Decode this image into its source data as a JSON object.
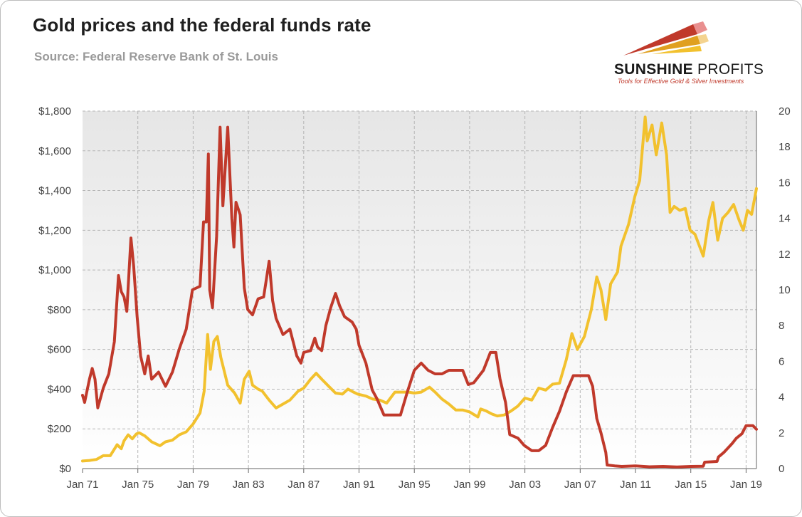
{
  "header": {
    "title": "Gold prices and the federal funds rate",
    "subtitle": "Source: Federal Reserve Bank of St. Louis"
  },
  "brand": {
    "name_bold": "SUNSHINE",
    "name_rest": " PROFITS",
    "tagline": "Tools for Effective Gold & Silver Investments"
  },
  "colors": {
    "gold": "#f2c12e",
    "fed_funds": "#c0392b",
    "grid": "#b5b5b5"
  },
  "chart_data": {
    "type": "line",
    "title": "Gold prices and the federal funds rate",
    "x_range": [
      1971.0,
      2019.75
    ],
    "x_ticks": [
      "Jan 71",
      "Jan 75",
      "Jan 79",
      "Jan 83",
      "Jan 87",
      "Jan 91",
      "Jan 95",
      "Jan 99",
      "Jan 03",
      "Jan 07",
      "Jan 11",
      "Jan 15",
      "Jan 19"
    ],
    "y_left": {
      "range": [
        0,
        1800
      ],
      "ticks": [
        "$0",
        "$200",
        "$400",
        "$600",
        "$800",
        "$1,000",
        "$1,200",
        "$1,400",
        "$1,600",
        "$1,800"
      ]
    },
    "y_right": {
      "range": [
        0,
        20
      ],
      "ticks": [
        "0",
        "2",
        "4",
        "6",
        "8",
        "10",
        "12",
        "14",
        "16",
        "18",
        "20"
      ]
    },
    "grid": true,
    "series": [
      {
        "key": "gold",
        "axis": "left",
        "points": [
          [
            1971.0,
            38
          ],
          [
            1971.5,
            41
          ],
          [
            1972.0,
            46
          ],
          [
            1972.5,
            65
          ],
          [
            1973.0,
            65
          ],
          [
            1973.5,
            120
          ],
          [
            1973.8,
            100
          ],
          [
            1974.0,
            140
          ],
          [
            1974.3,
            170
          ],
          [
            1974.6,
            150
          ],
          [
            1974.9,
            175
          ],
          [
            1975.1,
            180
          ],
          [
            1975.5,
            165
          ],
          [
            1976.0,
            135
          ],
          [
            1976.6,
            115
          ],
          [
            1977.0,
            135
          ],
          [
            1977.5,
            143
          ],
          [
            1978.0,
            170
          ],
          [
            1978.5,
            185
          ],
          [
            1979.0,
            225
          ],
          [
            1979.5,
            280
          ],
          [
            1979.8,
            390
          ],
          [
            1980.05,
            675
          ],
          [
            1980.25,
            500
          ],
          [
            1980.5,
            640
          ],
          [
            1980.75,
            665
          ],
          [
            1981.0,
            560
          ],
          [
            1981.5,
            420
          ],
          [
            1982.0,
            380
          ],
          [
            1982.4,
            330
          ],
          [
            1982.7,
            450
          ],
          [
            1983.05,
            490
          ],
          [
            1983.3,
            420
          ],
          [
            1983.7,
            400
          ],
          [
            1984.0,
            390
          ],
          [
            1984.5,
            345
          ],
          [
            1985.0,
            305
          ],
          [
            1985.5,
            325
          ],
          [
            1986.0,
            345
          ],
          [
            1986.6,
            390
          ],
          [
            1987.0,
            405
          ],
          [
            1987.5,
            450
          ],
          [
            1987.9,
            480
          ],
          [
            1988.3,
            450
          ],
          [
            1988.8,
            415
          ],
          [
            1989.3,
            380
          ],
          [
            1989.8,
            375
          ],
          [
            1990.2,
            400
          ],
          [
            1990.6,
            385
          ],
          [
            1990.9,
            375
          ],
          [
            1991.5,
            365
          ],
          [
            1992.0,
            350
          ],
          [
            1992.5,
            345
          ],
          [
            1993.0,
            330
          ],
          [
            1993.6,
            385
          ],
          [
            1994.0,
            385
          ],
          [
            1994.6,
            385
          ],
          [
            1995.0,
            380
          ],
          [
            1995.5,
            385
          ],
          [
            1996.1,
            410
          ],
          [
            1996.5,
            385
          ],
          [
            1997.0,
            350
          ],
          [
            1997.5,
            325
          ],
          [
            1998.0,
            295
          ],
          [
            1998.5,
            295
          ],
          [
            1999.0,
            285
          ],
          [
            1999.6,
            260
          ],
          [
            1999.8,
            300
          ],
          [
            2000.2,
            290
          ],
          [
            2000.6,
            275
          ],
          [
            2001.0,
            265
          ],
          [
            2001.5,
            270
          ],
          [
            2002.0,
            290
          ],
          [
            2002.5,
            315
          ],
          [
            2003.0,
            355
          ],
          [
            2003.5,
            345
          ],
          [
            2004.0,
            405
          ],
          [
            2004.5,
            395
          ],
          [
            2005.0,
            425
          ],
          [
            2005.5,
            430
          ],
          [
            2006.0,
            550
          ],
          [
            2006.4,
            680
          ],
          [
            2006.8,
            600
          ],
          [
            2007.3,
            665
          ],
          [
            2007.8,
            800
          ],
          [
            2008.2,
            965
          ],
          [
            2008.5,
            900
          ],
          [
            2008.85,
            750
          ],
          [
            2009.2,
            930
          ],
          [
            2009.7,
            990
          ],
          [
            2009.95,
            1120
          ],
          [
            2010.5,
            1230
          ],
          [
            2010.95,
            1370
          ],
          [
            2011.3,
            1450
          ],
          [
            2011.7,
            1770
          ],
          [
            2011.85,
            1650
          ],
          [
            2012.2,
            1730
          ],
          [
            2012.5,
            1580
          ],
          [
            2012.9,
            1740
          ],
          [
            2013.25,
            1580
          ],
          [
            2013.5,
            1290
          ],
          [
            2013.8,
            1320
          ],
          [
            2014.2,
            1300
          ],
          [
            2014.6,
            1310
          ],
          [
            2014.95,
            1200
          ],
          [
            2015.3,
            1180
          ],
          [
            2015.9,
            1070
          ],
          [
            2016.3,
            1250
          ],
          [
            2016.6,
            1340
          ],
          [
            2016.95,
            1150
          ],
          [
            2017.3,
            1260
          ],
          [
            2017.7,
            1290
          ],
          [
            2018.1,
            1330
          ],
          [
            2018.5,
            1250
          ],
          [
            2018.8,
            1200
          ],
          [
            2019.1,
            1300
          ],
          [
            2019.4,
            1280
          ],
          [
            2019.75,
            1410
          ]
        ]
      },
      {
        "key": "fed_funds",
        "axis": "right",
        "points": [
          [
            1971.0,
            4.1
          ],
          [
            1971.15,
            3.7
          ],
          [
            1971.5,
            5.0
          ],
          [
            1971.7,
            5.6
          ],
          [
            1971.9,
            5.0
          ],
          [
            1972.1,
            3.4
          ],
          [
            1972.5,
            4.5
          ],
          [
            1972.9,
            5.3
          ],
          [
            1973.3,
            7.1
          ],
          [
            1973.6,
            10.8
          ],
          [
            1973.8,
            9.9
          ],
          [
            1974.0,
            9.6
          ],
          [
            1974.2,
            8.8
          ],
          [
            1974.5,
            12.9
          ],
          [
            1974.7,
            11.3
          ],
          [
            1974.95,
            8.5
          ],
          [
            1975.2,
            6.3
          ],
          [
            1975.5,
            5.3
          ],
          [
            1975.75,
            6.3
          ],
          [
            1976.0,
            5.0
          ],
          [
            1976.5,
            5.4
          ],
          [
            1977.0,
            4.6
          ],
          [
            1977.5,
            5.4
          ],
          [
            1978.0,
            6.7
          ],
          [
            1978.5,
            7.8
          ],
          [
            1978.95,
            10.0
          ],
          [
            1979.5,
            10.2
          ],
          [
            1979.75,
            13.8
          ],
          [
            1979.95,
            13.8
          ],
          [
            1980.1,
            17.6
          ],
          [
            1980.2,
            10.0
          ],
          [
            1980.4,
            9.0
          ],
          [
            1980.7,
            13.0
          ],
          [
            1980.95,
            19.1
          ],
          [
            1981.15,
            14.7
          ],
          [
            1981.5,
            19.1
          ],
          [
            1981.8,
            14.0
          ],
          [
            1981.95,
            12.4
          ],
          [
            1982.1,
            14.9
          ],
          [
            1982.4,
            14.2
          ],
          [
            1982.7,
            10.1
          ],
          [
            1982.95,
            8.9
          ],
          [
            1983.3,
            8.6
          ],
          [
            1983.7,
            9.5
          ],
          [
            1984.1,
            9.6
          ],
          [
            1984.5,
            11.6
          ],
          [
            1984.75,
            9.4
          ],
          [
            1985.0,
            8.4
          ],
          [
            1985.5,
            7.5
          ],
          [
            1986.0,
            7.8
          ],
          [
            1986.5,
            6.3
          ],
          [
            1986.8,
            5.9
          ],
          [
            1987.0,
            6.5
          ],
          [
            1987.5,
            6.6
          ],
          [
            1987.8,
            7.3
          ],
          [
            1988.0,
            6.8
          ],
          [
            1988.3,
            6.6
          ],
          [
            1988.6,
            8.0
          ],
          [
            1988.95,
            9.0
          ],
          [
            1989.3,
            9.8
          ],
          [
            1989.6,
            9.1
          ],
          [
            1989.95,
            8.5
          ],
          [
            1990.5,
            8.2
          ],
          [
            1990.8,
            7.8
          ],
          [
            1991.0,
            6.9
          ],
          [
            1991.5,
            5.9
          ],
          [
            1991.95,
            4.4
          ],
          [
            1992.3,
            3.9
          ],
          [
            1992.8,
            3.0
          ],
          [
            1993.5,
            3.0
          ],
          [
            1994.0,
            3.0
          ],
          [
            1994.5,
            4.3
          ],
          [
            1995.0,
            5.5
          ],
          [
            1995.5,
            5.9
          ],
          [
            1996.0,
            5.5
          ],
          [
            1996.5,
            5.3
          ],
          [
            1997.0,
            5.3
          ],
          [
            1997.5,
            5.5
          ],
          [
            1998.5,
            5.5
          ],
          [
            1998.9,
            4.7
          ],
          [
            1999.3,
            4.8
          ],
          [
            1999.7,
            5.2
          ],
          [
            2000.0,
            5.5
          ],
          [
            2000.5,
            6.5
          ],
          [
            2000.9,
            6.5
          ],
          [
            2001.2,
            5.0
          ],
          [
            2001.6,
            3.7
          ],
          [
            2001.9,
            1.9
          ],
          [
            2002.5,
            1.7
          ],
          [
            2002.95,
            1.3
          ],
          [
            2003.5,
            1.0
          ],
          [
            2004.0,
            1.0
          ],
          [
            2004.5,
            1.3
          ],
          [
            2005.0,
            2.3
          ],
          [
            2005.5,
            3.2
          ],
          [
            2006.0,
            4.3
          ],
          [
            2006.5,
            5.2
          ],
          [
            2007.6,
            5.2
          ],
          [
            2007.9,
            4.6
          ],
          [
            2008.2,
            2.8
          ],
          [
            2008.5,
            2.0
          ],
          [
            2008.85,
            0.9
          ],
          [
            2008.95,
            0.2
          ],
          [
            2009.5,
            0.15
          ],
          [
            2010.0,
            0.12
          ],
          [
            2011.0,
            0.15
          ],
          [
            2012.0,
            0.1
          ],
          [
            2013.0,
            0.12
          ],
          [
            2014.0,
            0.09
          ],
          [
            2015.0,
            0.12
          ],
          [
            2015.9,
            0.13
          ],
          [
            2016.0,
            0.36
          ],
          [
            2016.9,
            0.4
          ],
          [
            2017.0,
            0.65
          ],
          [
            2017.4,
            0.91
          ],
          [
            2017.7,
            1.16
          ],
          [
            2018.0,
            1.41
          ],
          [
            2018.3,
            1.7
          ],
          [
            2018.7,
            1.95
          ],
          [
            2019.0,
            2.4
          ],
          [
            2019.5,
            2.4
          ],
          [
            2019.75,
            2.2
          ]
        ]
      }
    ]
  }
}
